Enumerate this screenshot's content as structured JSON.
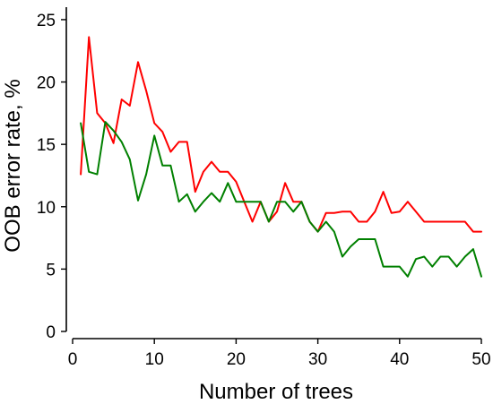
{
  "chart_data": {
    "type": "line",
    "title": "",
    "xlabel": "Number of trees",
    "ylabel": "OOB error rate, %",
    "xlim": [
      0,
      50
    ],
    "ylim": [
      0,
      26
    ],
    "xticks": [
      0,
      10,
      20,
      30,
      40,
      50
    ],
    "yticks": [
      0,
      5,
      10,
      15,
      20,
      25
    ],
    "grid": false,
    "legend": "none",
    "x": [
      1,
      2,
      3,
      4,
      5,
      6,
      7,
      8,
      9,
      10,
      11,
      12,
      13,
      14,
      15,
      16,
      17,
      18,
      19,
      20,
      21,
      22,
      23,
      24,
      25,
      26,
      27,
      28,
      29,
      30,
      31,
      32,
      33,
      34,
      35,
      36,
      37,
      38,
      39,
      40,
      41,
      42,
      43,
      44,
      45,
      46,
      47,
      48,
      49,
      50
    ],
    "series": [
      {
        "color": "#ff0000",
        "values": [
          12.6,
          23.6,
          17.5,
          16.7,
          15.1,
          18.6,
          18.1,
          21.6,
          19.3,
          16.7,
          16.0,
          14.4,
          15.2,
          15.2,
          11.2,
          12.8,
          13.6,
          12.8,
          12.8,
          12.0,
          10.4,
          8.8,
          10.4,
          8.8,
          9.6,
          11.9,
          10.4,
          10.4,
          8.8,
          8.0,
          9.5,
          9.5,
          9.6,
          9.6,
          8.8,
          8.8,
          9.6,
          11.2,
          9.5,
          9.6,
          10.4,
          9.6,
          8.8,
          8.8,
          8.8,
          8.8,
          8.8,
          8.8,
          8.0,
          8.0
        ]
      },
      {
        "color": "#008000",
        "values": [
          16.7,
          12.8,
          12.6,
          16.8,
          16.1,
          15.2,
          13.8,
          10.5,
          12.6,
          15.7,
          13.3,
          13.3,
          10.4,
          11.0,
          9.6,
          10.4,
          11.1,
          10.4,
          11.9,
          10.4,
          10.4,
          10.4,
          10.4,
          8.8,
          10.4,
          10.4,
          9.6,
          10.4,
          8.8,
          8.0,
          8.8,
          8.0,
          6.0,
          6.8,
          7.4,
          7.4,
          7.4,
          5.2,
          5.2,
          5.2,
          4.4,
          5.8,
          6.0,
          5.2,
          6.0,
          6.0,
          5.2,
          6.0,
          6.6,
          4.4
        ]
      }
    ]
  }
}
